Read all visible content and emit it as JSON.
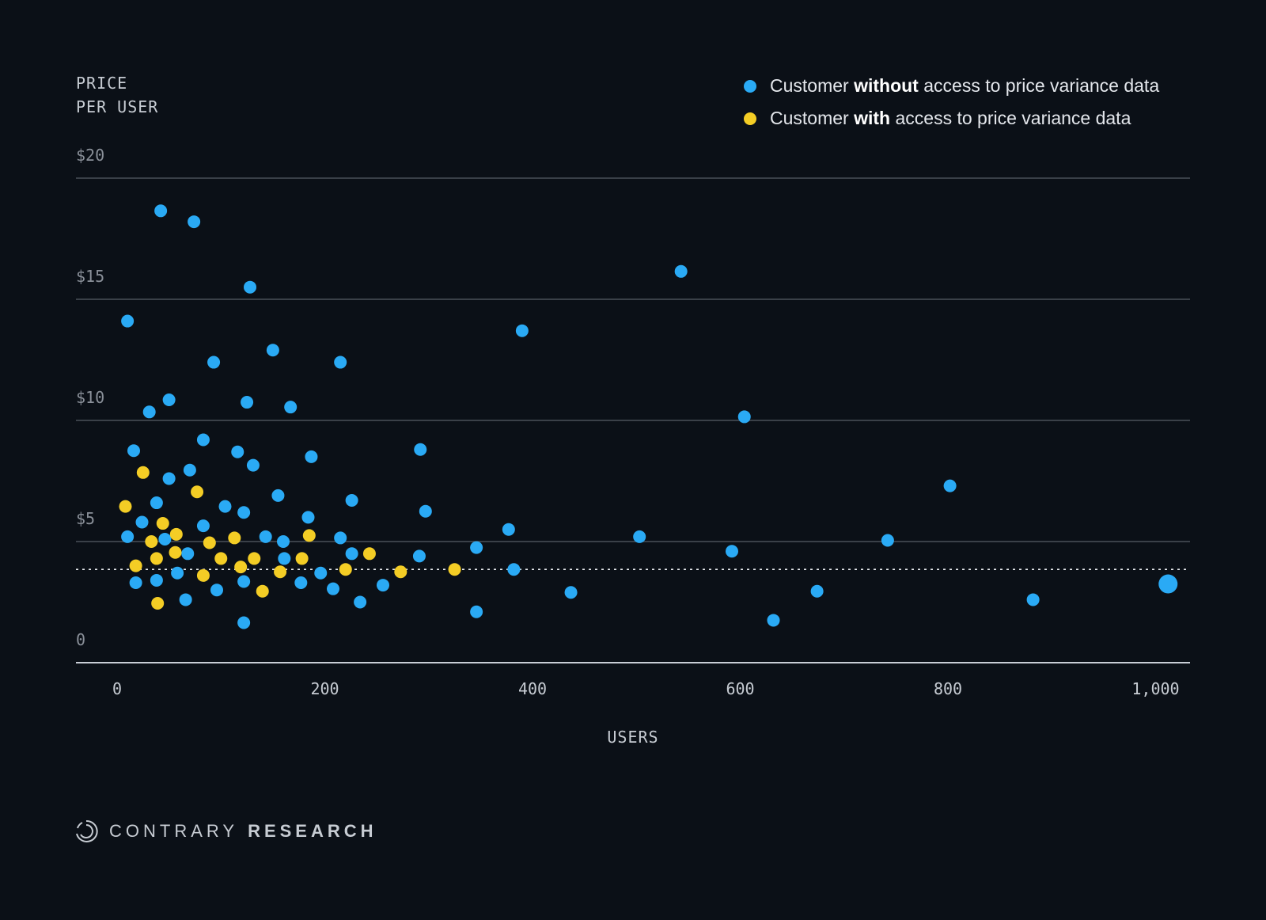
{
  "y_axis_title": [
    "PRICE",
    "PER USER"
  ],
  "x_axis_title": "USERS",
  "legend": [
    {
      "prefix": "Customer ",
      "bold": "without",
      "suffix": " access to price variance data",
      "color": "#2aaaf5"
    },
    {
      "prefix": "Customer ",
      "bold": "with",
      "suffix": " access to price variance data",
      "color": "#f4cd25"
    }
  ],
  "brand": {
    "light": "CONTRARY",
    "bold": "RESEARCH"
  },
  "chart_data": {
    "type": "scatter",
    "xlabel": "USERS",
    "ylabel": "PRICE PER USER",
    "xlim": [
      -20,
      1030
    ],
    "ylim": [
      0,
      20
    ],
    "x_ticks": [
      {
        "value": 0,
        "label": "0"
      },
      {
        "value": 200,
        "label": "200"
      },
      {
        "value": 400,
        "label": "400"
      },
      {
        "value": 600,
        "label": "600"
      },
      {
        "value": 800,
        "label": "800"
      },
      {
        "value": 1000,
        "label": "1,000"
      }
    ],
    "y_ticks": [
      {
        "value": 0,
        "label": "0"
      },
      {
        "value": 5,
        "label": "$5"
      },
      {
        "value": 10,
        "label": "$10"
      },
      {
        "value": 15,
        "label": "$15"
      },
      {
        "value": 20,
        "label": "$20"
      }
    ],
    "grid": true,
    "legend_position": "top-right",
    "reference_line": {
      "y": 3.85,
      "style": "dotted"
    },
    "series": [
      {
        "name": "Customer without access to price variance data",
        "color": "#2aaaf5",
        "points": [
          [
            42,
            18.65
          ],
          [
            74,
            18.2
          ],
          [
            128,
            15.5
          ],
          [
            10,
            14.1
          ],
          [
            93,
            12.4
          ],
          [
            150,
            12.9
          ],
          [
            215,
            12.4
          ],
          [
            50,
            10.85
          ],
          [
            31,
            10.35
          ],
          [
            125,
            10.75
          ],
          [
            167,
            10.55
          ],
          [
            16,
            8.75
          ],
          [
            83,
            9.2
          ],
          [
            116,
            8.7
          ],
          [
            131,
            8.15
          ],
          [
            187,
            8.5
          ],
          [
            70,
            7.95
          ],
          [
            50,
            7.6
          ],
          [
            155,
            6.9
          ],
          [
            226,
            6.7
          ],
          [
            38,
            6.6
          ],
          [
            104,
            6.45
          ],
          [
            122,
            6.2
          ],
          [
            184,
            6.0
          ],
          [
            24,
            5.8
          ],
          [
            83,
            5.65
          ],
          [
            10,
            5.2
          ],
          [
            46,
            5.1
          ],
          [
            143,
            5.2
          ],
          [
            160,
            5.0
          ],
          [
            215,
            5.15
          ],
          [
            68,
            4.5
          ],
          [
            161,
            4.3
          ],
          [
            226,
            4.5
          ],
          [
            58,
            3.7
          ],
          [
            38,
            3.4
          ],
          [
            18,
            3.3
          ],
          [
            122,
            3.35
          ],
          [
            177,
            3.3
          ],
          [
            196,
            3.7
          ],
          [
            96,
            3.0
          ],
          [
            208,
            3.05
          ],
          [
            66,
            2.6
          ],
          [
            234,
            2.5
          ],
          [
            256,
            3.2
          ],
          [
            122,
            1.65
          ],
          [
            292,
            8.8
          ],
          [
            297,
            6.25
          ],
          [
            291,
            4.4
          ],
          [
            346,
            4.75
          ],
          [
            346,
            2.1
          ],
          [
            377,
            5.5
          ],
          [
            390,
            13.7
          ],
          [
            382,
            3.85
          ],
          [
            437,
            2.9
          ],
          [
            503,
            5.2
          ],
          [
            543,
            16.15
          ],
          [
            592,
            4.6
          ],
          [
            604,
            10.15
          ],
          [
            632,
            1.75
          ],
          [
            674,
            2.95
          ],
          [
            742,
            5.05
          ],
          [
            802,
            7.3
          ],
          [
            882,
            2.6
          ]
        ]
      },
      {
        "name": "Customer with access to price variance data",
        "color": "#f4cd25",
        "points": [
          [
            25,
            7.85
          ],
          [
            8,
            6.45
          ],
          [
            77,
            7.05
          ],
          [
            44,
            5.75
          ],
          [
            57,
            5.3
          ],
          [
            33,
            5.0
          ],
          [
            89,
            4.95
          ],
          [
            113,
            5.15
          ],
          [
            185,
            5.25
          ],
          [
            56,
            4.55
          ],
          [
            38,
            4.3
          ],
          [
            100,
            4.3
          ],
          [
            132,
            4.3
          ],
          [
            178,
            4.3
          ],
          [
            243,
            4.5
          ],
          [
            18,
            4.0
          ],
          [
            119,
            3.95
          ],
          [
            157,
            3.75
          ],
          [
            220,
            3.85
          ],
          [
            273,
            3.75
          ],
          [
            325,
            3.85
          ],
          [
            83,
            3.6
          ],
          [
            140,
            2.95
          ],
          [
            39,
            2.45
          ]
        ]
      },
      {
        "name": "",
        "color": "#2aaaf5",
        "points": [
          [
            1012,
            3.25
          ]
        ]
      }
    ]
  }
}
